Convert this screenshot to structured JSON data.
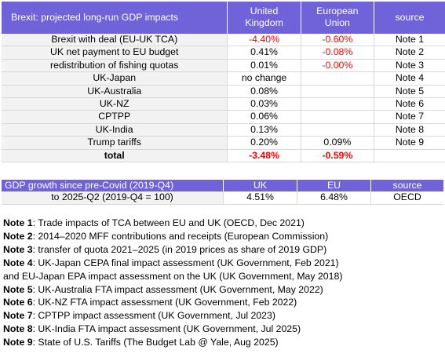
{
  "table1": {
    "header": {
      "title": "Brexit: projected long-run GDP impacts",
      "uk": "United Kingdom",
      "eu": "European Union",
      "source": "source"
    },
    "rows": [
      {
        "label": "Brexit with deal (EU-UK TCA)",
        "uk": "-4.40%",
        "eu": "-0.60%",
        "source": "Note 1",
        "uk_neg": true,
        "eu_neg": true
      },
      {
        "label": "UK net payment to EU budget",
        "uk": "0.41%",
        "eu": "-0.08%",
        "source": "Note 2",
        "uk_neg": false,
        "eu_neg": true
      },
      {
        "label": "redistribution of fishing quotas",
        "uk": "0.01%",
        "eu": "-0.00%",
        "source": "Note 3",
        "uk_neg": false,
        "eu_neg": true
      },
      {
        "label": "UK-Japan",
        "uk": "no change",
        "eu": "",
        "source": "Note 4"
      },
      {
        "label": "UK-Australia",
        "uk": "0.08%",
        "eu": "",
        "source": "Note 5"
      },
      {
        "label": "UK-NZ",
        "uk": "0.03%",
        "eu": "",
        "source": "Note 6"
      },
      {
        "label": "CPTPP",
        "uk": "0.06%",
        "eu": "",
        "source": "Note 7"
      },
      {
        "label": "UK-India",
        "uk": "0.13%",
        "eu": "",
        "source": "Note 8"
      },
      {
        "label": "Trump tariffs",
        "uk": "0.20%",
        "eu": "0.09%",
        "source": "Note 9"
      },
      {
        "label": "total",
        "uk": "-3.48%",
        "eu": "-0.59%",
        "source": ""
      }
    ]
  },
  "table2": {
    "header": {
      "title": "GDP growth since pre-Covid (2019-Q4)",
      "uk": "UK",
      "eu": "EU",
      "source": "source"
    },
    "row": {
      "label": "to 2025-Q2 (2019-Q4 = 100)",
      "uk": "4.51%",
      "eu": "6.48%",
      "source": "OECD"
    }
  },
  "notes": [
    {
      "key": "Note 1",
      "text": ": Trade impacts of TCA between EU and UK (OECD, Dec 2021)"
    },
    {
      "key": "Note 2",
      "text": ": 2014–2020 MFF contributions and receipts (European Commission)"
    },
    {
      "key": "Note 3",
      "text": ": transfer of quota 2021–2025 (in 2019 prices as share of 2019 GDP)"
    },
    {
      "key": "Note 4",
      "text": ": UK-Japan CEPA final impact assessment (UK Government, Feb 2021)"
    },
    {
      "key": "",
      "text": "and EU-Japan EPA impact assessment on the UK (UK Government, May 2018)"
    },
    {
      "key": "Note 5",
      "text": ": UK-Australia FTA impact assessment (UK Government, May 2022)"
    },
    {
      "key": "Note 6",
      "text": ": UK-NZ FTA impact assessment (UK Government, Feb 2022)"
    },
    {
      "key": "Note 7",
      "text": ": CPTPP impact assessment (UK Government, Jul 2023)"
    },
    {
      "key": "Note 8",
      "text": ": UK-India FTA impact assessment (UK Government, Jul 2025)"
    },
    {
      "key": "Note 9",
      "text": ": State of U.S. Tariffs (The Budget Lab @ Yale, Aug 2025)"
    }
  ]
}
